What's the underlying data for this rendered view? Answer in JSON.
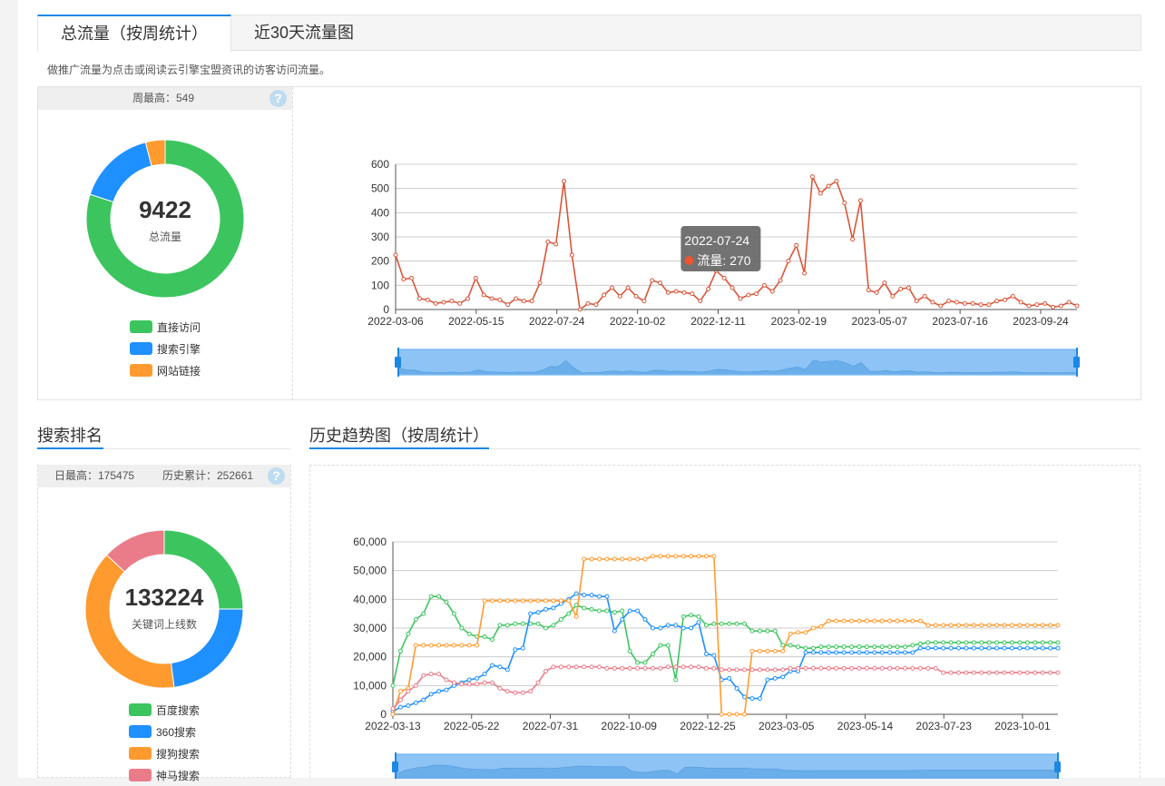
{
  "tabs": [
    "总流量（按周统计）",
    "近30天流量图"
  ],
  "description": "做推广流量为点击或阅读云引擎宝盟资讯的访客访问流量。",
  "traffic": {
    "week_max_label": "周最高：549",
    "total": "9422",
    "total_label": "总流量",
    "help_icon": "question-icon",
    "legend": [
      {
        "label": "直接访问",
        "color": "#3cc55e"
      },
      {
        "label": "搜索引擎",
        "color": "#1e90ff"
      },
      {
        "label": "网站链接",
        "color": "#ff9a2e"
      }
    ],
    "donut": [
      0.8,
      0.16,
      0.04
    ]
  },
  "search_rank": {
    "title": "搜索排名",
    "day_max_label": "日最高：175475",
    "history_label": "历史累计：252661",
    "total": "133224",
    "total_label": "关键词上线数",
    "legend": [
      {
        "label": "百度搜索",
        "color": "#3cc55e"
      },
      {
        "label": "360搜索",
        "color": "#1e90ff"
      },
      {
        "label": "搜狗搜索",
        "color": "#ff9a2e"
      },
      {
        "label": "神马搜索",
        "color": "#ea7c8a"
      }
    ],
    "donut": [
      0.25,
      0.23,
      0.39,
      0.13
    ]
  },
  "history_title": "历史趋势图（按周统计）",
  "chart_data": [
    {
      "type": "line",
      "xlabel": "",
      "ylabel": "",
      "ylim": [
        0,
        600
      ],
      "yticks": [
        "0",
        "100",
        "200",
        "300",
        "400",
        "500",
        "600"
      ],
      "xticks": [
        "2022-03-06",
        "2022-05-15",
        "2022-07-24",
        "2022-10-02",
        "2022-12-11",
        "2023-02-19",
        "2023-05-07",
        "2023-07-16",
        "2023-09-24"
      ],
      "tooltip": {
        "date": "2022-07-24",
        "text": "流量: 270"
      },
      "series": [
        {
          "name": "流量",
          "color": "#d9563a",
          "values": [
            225,
            125,
            130,
            45,
            40,
            25,
            30,
            35,
            25,
            45,
            130,
            60,
            45,
            40,
            20,
            45,
            35,
            35,
            110,
            280,
            270,
            530,
            225,
            0,
            25,
            20,
            60,
            90,
            55,
            90,
            55,
            35,
            120,
            110,
            70,
            75,
            70,
            65,
            35,
            85,
            160,
            130,
            90,
            45,
            60,
            65,
            100,
            75,
            120,
            200,
            265,
            150,
            549,
            480,
            510,
            530,
            440,
            290,
            450,
            80,
            70,
            110,
            55,
            85,
            90,
            35,
            55,
            30,
            15,
            35,
            30,
            25,
            25,
            20,
            20,
            35,
            40,
            55,
            30,
            15,
            20,
            25,
            10,
            15,
            30,
            15
          ]
        }
      ]
    },
    {
      "type": "line",
      "xlabel": "",
      "ylabel": "",
      "ylim": [
        0,
        60000
      ],
      "yticks": [
        "0",
        "10,000",
        "20,000",
        "30,000",
        "40,000",
        "50,000",
        "60,000"
      ],
      "xticks": [
        "2022-03-13",
        "2022-05-22",
        "2022-07-31",
        "2022-10-09",
        "2022-12-25",
        "2023-03-05",
        "2023-05-14",
        "2023-07-23",
        "2023-10-01"
      ],
      "series": [
        {
          "name": "百度搜索",
          "color": "#3cc55e",
          "values": [
            10000,
            22000,
            28000,
            33000,
            35000,
            41000,
            41000,
            39000,
            35000,
            30000,
            28000,
            27000,
            27000,
            26000,
            31000,
            31000,
            31500,
            31500,
            31500,
            31500,
            30000,
            31000,
            33000,
            35000,
            38000,
            37000,
            36500,
            36000,
            36000,
            35500,
            36000,
            22000,
            18000,
            18000,
            21000,
            24000,
            24000,
            12000,
            34000,
            34500,
            34000,
            31000,
            31500,
            31500,
            31500,
            31500,
            31500,
            29000,
            29000,
            29000,
            29000,
            24000,
            24000,
            23500,
            23000,
            23000,
            23500,
            23500,
            23500,
            23500,
            23500,
            23500,
            23500,
            23500,
            23500,
            23500,
            23500,
            23500,
            24000,
            24500,
            25000,
            25000,
            25000,
            25000,
            25000,
            25000,
            25000,
            25000,
            25000,
            25000,
            25000,
            25000,
            25000,
            25000,
            25000,
            25000,
            25000,
            25000
          ]
        },
        {
          "name": "360搜索",
          "color": "#1e90ff",
          "values": [
            1000,
            2500,
            3000,
            4000,
            5000,
            7000,
            8000,
            8500,
            10000,
            11000,
            12000,
            12500,
            14000,
            17000,
            16500,
            15500,
            22500,
            23000,
            35000,
            35500,
            36500,
            37000,
            38500,
            40000,
            42000,
            41500,
            41500,
            41000,
            41000,
            29000,
            33000,
            36000,
            36000,
            33000,
            30000,
            30000,
            31000,
            31000,
            30000,
            30000,
            32000,
            21000,
            20500,
            12000,
            12500,
            9000,
            6000,
            5500,
            5500,
            12000,
            12500,
            13000,
            15000,
            15000,
            21500,
            21500,
            21500,
            21500,
            21500,
            21500,
            21500,
            21500,
            21500,
            21500,
            21500,
            21500,
            21500,
            21500,
            21500,
            23000,
            23000,
            23000,
            23000,
            23000,
            23000,
            23000,
            23000,
            23000,
            23000,
            23000,
            23000,
            23000,
            23000,
            23000,
            23000,
            23000,
            23000,
            23000
          ]
        },
        {
          "name": "搜狗搜索",
          "color": "#ff9a2e",
          "values": [
            0,
            8000,
            9000,
            24000,
            24000,
            24000,
            24000,
            24000,
            24000,
            24000,
            24000,
            24000,
            39500,
            39500,
            39500,
            39500,
            39500,
            39500,
            39500,
            39500,
            39500,
            39500,
            39500,
            39500,
            34000,
            54000,
            54000,
            54000,
            54000,
            54000,
            54000,
            54000,
            54000,
            54000,
            55000,
            55000,
            55000,
            55000,
            55000,
            55000,
            55000,
            55000,
            55000,
            0,
            0,
            0,
            0,
            22000,
            22000,
            22000,
            22000,
            22000,
            28000,
            28500,
            28500,
            30000,
            30500,
            32500,
            32500,
            32500,
            32500,
            32500,
            32500,
            32500,
            32500,
            32500,
            32500,
            32500,
            32500,
            32500,
            31000,
            31000,
            31000,
            31000,
            31000,
            31000,
            31000,
            31000,
            31000,
            31000,
            31000,
            31000,
            31000,
            31000,
            31000,
            31000,
            31000,
            31000
          ]
        },
        {
          "name": "神马搜索",
          "color": "#ea7c8a",
          "values": [
            2000,
            5000,
            8000,
            10000,
            13500,
            14000,
            14000,
            12000,
            11000,
            10500,
            10500,
            10500,
            11000,
            11000,
            9000,
            8000,
            7500,
            7500,
            8000,
            11000,
            15000,
            16500,
            16500,
            16500,
            16500,
            16500,
            16500,
            16500,
            16000,
            16000,
            16000,
            16000,
            16000,
            16000,
            16000,
            16000,
            16500,
            16500,
            16500,
            16500,
            16500,
            16000,
            16000,
            15500,
            15500,
            15500,
            15500,
            15500,
            15500,
            15500,
            15500,
            15500,
            16000,
            16000,
            16000,
            16000,
            16000,
            16000,
            16000,
            16000,
            16000,
            16000,
            16000,
            16000,
            16000,
            16000,
            16000,
            16000,
            16000,
            16000,
            16000,
            16000,
            14500,
            14500,
            14500,
            14500,
            14500,
            14500,
            14500,
            14500,
            14500,
            14500,
            14500,
            14500,
            14500,
            14500,
            14500,
            14500
          ]
        }
      ]
    }
  ]
}
